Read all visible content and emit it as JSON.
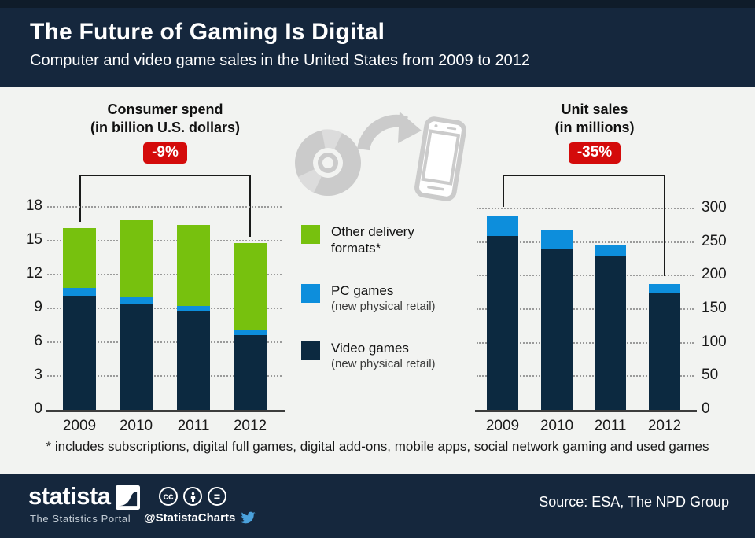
{
  "header": {
    "title": "The Future of Gaming Is Digital",
    "subtitle": "Computer and video game sales in the United States from 2009 to 2012"
  },
  "panels": [
    {
      "title_line1": "Consumer spend",
      "title_line2": "(in billion U.S. dollars)",
      "badge": "-9%"
    },
    {
      "title_line1": "Unit sales",
      "title_line2": "(in millions)",
      "badge": "-35%"
    }
  ],
  "legend": {
    "items": [
      {
        "label": "Other delivery formats*",
        "sublabel": "",
        "color": "#77c10e"
      },
      {
        "label": "PC games",
        "sublabel": "(new physical retail)",
        "color": "#0d8edc"
      },
      {
        "label": "Video games",
        "sublabel": "(new physical retail)",
        "color": "#0c2940"
      }
    ]
  },
  "chart_data": [
    {
      "type": "bar",
      "stacked": true,
      "title": "Consumer spend (in billion U.S. dollars)",
      "change_label": "-9%",
      "categories": [
        "2009",
        "2010",
        "2011",
        "2012"
      ],
      "series": [
        {
          "name": "Video games (new physical retail)",
          "color": "#0c2940",
          "values": [
            10.1,
            9.4,
            8.7,
            6.6
          ]
        },
        {
          "name": "PC games (new physical retail)",
          "color": "#0d8edc",
          "values": [
            0.7,
            0.6,
            0.5,
            0.5
          ]
        },
        {
          "name": "Other delivery formats*",
          "color": "#77c10e",
          "values": [
            5.3,
            6.8,
            7.2,
            7.7
          ]
        }
      ],
      "totals": [
        16.1,
        16.8,
        16.4,
        14.8
      ],
      "yticks": [
        0,
        3,
        6,
        9,
        12,
        15,
        18
      ],
      "ylim": [
        0,
        18
      ],
      "axis_side": "left",
      "grid": "dotted",
      "legend_position": "center-between-charts"
    },
    {
      "type": "bar",
      "stacked": true,
      "title": "Unit sales (in millions)",
      "change_label": "-35%",
      "categories": [
        "2009",
        "2010",
        "2011",
        "2012"
      ],
      "series": [
        {
          "name": "Video games (new physical retail)",
          "color": "#0c2940",
          "values": [
            259,
            240,
            228,
            174
          ]
        },
        {
          "name": "PC games (new physical retail)",
          "color": "#0d8edc",
          "values": [
            31,
            27,
            18,
            14
          ]
        }
      ],
      "totals": [
        290,
        267,
        246,
        188
      ],
      "yticks": [
        0,
        50,
        100,
        150,
        200,
        250,
        300
      ],
      "ylim": [
        0,
        300
      ],
      "axis_side": "right",
      "grid": "dotted",
      "legend_position": "center-between-charts"
    }
  ],
  "footnote": "* includes subscriptions, digital full games, digital add-ons, mobile apps, social network gaming and used games",
  "footer": {
    "logo_text": "statista",
    "logo_tagline": "The Statistics Portal",
    "cc_icon_1": "cc",
    "cc_icon_3": "=",
    "twitter_handle": "@StatistaCharts",
    "source": "Source: ESA, The NPD Group"
  },
  "colors": {
    "header_bg": "#15273d",
    "badge_red": "#d40b0b",
    "video_games": "#0c2940",
    "pc_games": "#0d8edc",
    "other_formats": "#77c10e",
    "twitter_blue": "#4aa1dc",
    "graphic_gray": "#cbcbcb"
  }
}
